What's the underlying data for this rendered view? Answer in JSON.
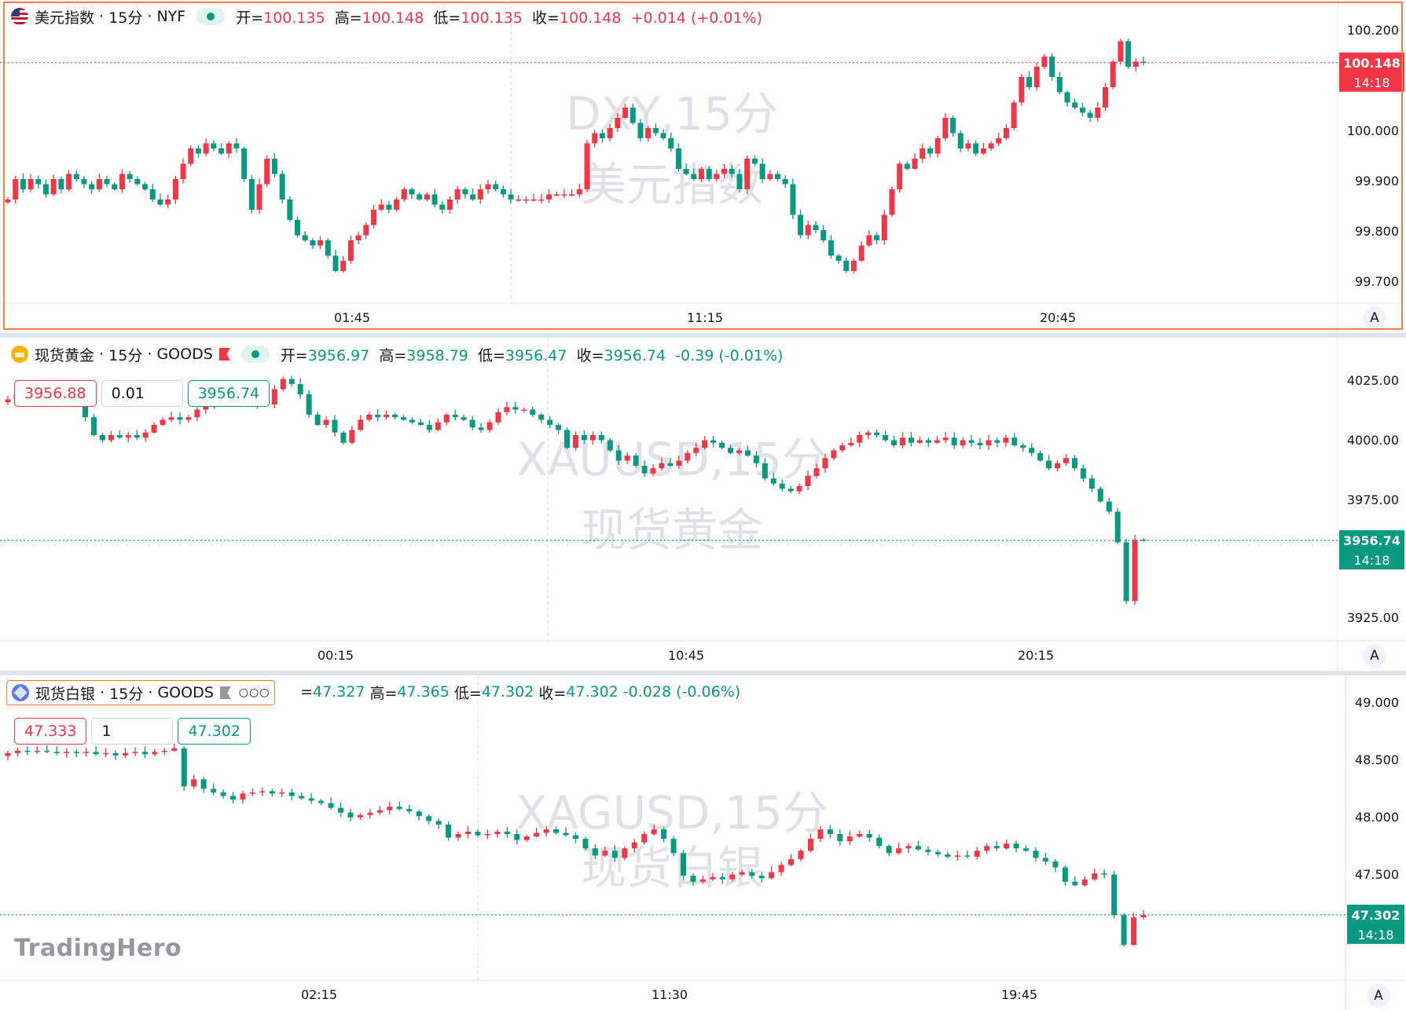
{
  "colors": {
    "up": "#f23645",
    "down": "#089981",
    "grid": "#e0e3eb",
    "axis_text": "#131722",
    "watermark": "#dfe1e6",
    "active_border": "#f57f45"
  },
  "time_label": "14:18",
  "logo": "TradingHero",
  "auto_label": "A",
  "panes": [
    {
      "symbol_name": "美元指数",
      "interval": "15分",
      "exchange": "NYF",
      "watermark_line1": "DXY,15分",
      "watermark_line2": "美元指数",
      "ohlc": {
        "o_label": "开=",
        "o": "100.135",
        "h_label": "高=",
        "h": "100.148",
        "l_label": "低=",
        "l": "100.135",
        "c_label": "收=",
        "c": "100.148",
        "chg": "+0.014",
        "chg_pct": "(+0.01%)"
      },
      "last_price": "100.148",
      "y_ticks": [
        "100.200",
        "100.000",
        "99.900",
        "99.800",
        "99.700"
      ],
      "x_ticks": [
        "01:45",
        "11:15",
        "20:45"
      ]
    },
    {
      "symbol_name": "现货黄金",
      "interval": "15分",
      "exchange": "GOODS",
      "watermark_line1": "XAUUSD,15分",
      "watermark_line2": "现货黄金",
      "ohlc": {
        "o_label": "开=",
        "o": "3956.97",
        "h_label": "高=",
        "h": "3958.79",
        "l_label": "低=",
        "l": "3956.47",
        "c_label": "收=",
        "c": "3956.74",
        "chg": "-0.39",
        "chg_pct": "(-0.01%)"
      },
      "sell": "3956.88",
      "qty": "0.01",
      "buy": "3956.74",
      "last_price": "3956.74",
      "y_ticks": [
        "4025.00",
        "4000.00",
        "3975.00",
        "3925.00"
      ],
      "x_ticks": [
        "00:15",
        "10:45",
        "20:15"
      ]
    },
    {
      "symbol_name": "现货白银",
      "interval": "15分",
      "exchange": "GOODS",
      "watermark_line1": "XAGUSD,15分",
      "watermark_line2": "现货白银",
      "ohlc": {
        "o_label": "=",
        "o": "47.327",
        "h_label": "高=",
        "h": "47.365",
        "l_label": "低=",
        "l": "47.302",
        "c_label": "收=",
        "c": "47.302",
        "chg": "-0.028",
        "chg_pct": "(-0.06%)"
      },
      "sell": "47.333",
      "qty": "1",
      "buy": "47.302",
      "last_price": "47.302",
      "y_ticks": [
        "49.000",
        "48.500",
        "48.000",
        "47.500",
        "47.000"
      ],
      "x_ticks": [
        "02:15",
        "11:30",
        "19:45"
      ]
    }
  ],
  "chart_data": [
    {
      "type": "candlestick",
      "title": "美元指数 · 15分 · NYF",
      "y_range": [
        99.68,
        100.24
      ],
      "last": 100.148,
      "y_ticks": [
        100.2,
        100.0,
        99.9,
        99.8,
        99.7
      ],
      "x_ticks": [
        "01:45",
        "11:15",
        "20:45"
      ],
      "close": [
        99.88,
        99.92,
        99.9,
        99.92,
        99.91,
        99.89,
        99.92,
        99.9,
        99.93,
        99.92,
        99.91,
        99.9,
        99.92,
        99.91,
        99.9,
        99.93,
        99.92,
        99.91,
        99.9,
        99.88,
        99.87,
        99.88,
        99.92,
        99.95,
        99.98,
        99.97,
        99.99,
        99.98,
        99.97,
        99.99,
        99.98,
        99.92,
        99.86,
        99.91,
        99.96,
        99.93,
        99.88,
        99.84,
        99.81,
        99.8,
        99.79,
        99.8,
        99.77,
        99.74,
        99.76,
        99.8,
        99.81,
        99.83,
        99.86,
        99.87,
        99.86,
        99.88,
        99.9,
        99.89,
        99.88,
        99.89,
        99.87,
        99.86,
        99.88,
        99.9,
        99.89,
        99.88,
        99.9,
        99.91,
        99.9,
        99.89,
        99.88,
        99.88,
        99.88,
        99.88,
        99.88,
        99.89,
        99.89,
        99.89,
        99.89,
        99.9,
        99.99,
        100.01,
        100.0,
        100.02,
        100.04,
        100.06,
        100.03,
        100.0,
        100.02,
        100.01,
        100.0,
        99.98,
        99.94,
        99.93,
        99.92,
        99.94,
        99.92,
        99.93,
        99.94,
        99.93,
        99.9,
        99.96,
        99.95,
        99.92,
        99.93,
        99.92,
        99.91,
        99.85,
        99.81,
        99.83,
        99.82,
        99.8,
        99.77,
        99.76,
        99.74,
        99.76,
        99.79,
        99.81,
        99.8,
        99.85,
        99.9,
        99.95,
        99.94,
        99.96,
        99.98,
        99.97,
        100.0,
        100.04,
        100.01,
        99.98,
        99.99,
        99.97,
        99.98,
        99.99,
        100.0,
        100.02,
        100.07,
        100.12,
        100.1,
        100.14,
        100.16,
        100.12,
        100.09,
        100.07,
        100.06,
        100.05,
        100.04,
        100.06,
        100.1,
        100.15,
        100.19,
        100.14,
        100.15,
        100.148
      ]
    },
    {
      "type": "candlestick",
      "title": "现货黄金 · 15分 · GOODS",
      "y_range": [
        3918,
        4030
      ],
      "last": 3956.74,
      "y_ticks": [
        4025,
        4000,
        3975,
        3925
      ],
      "x_ticks": [
        "00:15",
        "10:45",
        "20:15"
      ],
      "close": [
        4012,
        4014,
        4013,
        4012,
        4013,
        4012,
        4014,
        4012,
        4011,
        4005,
        3998,
        3996,
        3998,
        3997,
        3998,
        3997,
        3999,
        4002,
        4004,
        4005,
        4004,
        4005,
        4008,
        4010,
        4011,
        4012,
        4011,
        4012,
        4013,
        4010,
        4010,
        4016,
        4020,
        4018,
        4014,
        4006,
        4002,
        4004,
        3999,
        3995,
        4000,
        4004,
        4006,
        4005,
        4006,
        4005,
        4004,
        4003,
        4002,
        4000,
        4003,
        4006,
        4005,
        4004,
        4001,
        4000,
        4003,
        4007,
        4009,
        4008,
        4008,
        4006,
        4004,
        4002,
        4000,
        3993,
        3998,
        3996,
        3998,
        3996,
        3992,
        3988,
        3990,
        3986,
        3983,
        3985,
        3987,
        3986,
        3988,
        3991,
        3993,
        3996,
        3995,
        3993,
        3991,
        3992,
        3990,
        3987,
        3981,
        3979,
        3977,
        3976,
        3978,
        3982,
        3985,
        3989,
        3992,
        3994,
        3995,
        3998,
        3999,
        3998,
        3996,
        3994,
        3997,
        3995,
        3996,
        3995,
        3996,
        3997,
        3994,
        3996,
        3995,
        3994,
        3996,
        3995,
        3997,
        3994,
        3993,
        3991,
        3988,
        3985,
        3987,
        3989,
        3985,
        3981,
        3977,
        3972,
        3968,
        3956,
        3933,
        3957,
        3956.74
      ]
    },
    {
      "type": "candlestick",
      "title": "现货白银 · 15分 · GOODS",
      "y_range": [
        46.78,
        49.18
      ],
      "last": 47.302,
      "y_ticks": [
        49.0,
        48.5,
        48.0,
        47.5,
        47.0
      ],
      "x_ticks": [
        "02:15",
        "11:30",
        "19:45"
      ],
      "close": [
        48.66,
        48.68,
        48.67,
        48.68,
        48.67,
        48.66,
        48.67,
        48.66,
        48.67,
        48.65,
        48.66,
        48.64,
        48.66,
        48.67,
        48.65,
        48.67,
        48.68,
        48.7,
        48.38,
        48.44,
        48.36,
        48.33,
        48.3,
        48.27,
        48.32,
        48.33,
        48.34,
        48.32,
        48.33,
        48.3,
        48.28,
        48.26,
        48.24,
        48.2,
        48.16,
        48.12,
        48.14,
        48.16,
        48.18,
        48.21,
        48.19,
        48.17,
        48.13,
        48.09,
        48.06,
        47.95,
        47.98,
        48.0,
        47.97,
        47.98,
        48.0,
        47.98,
        47.93,
        47.96,
        47.99,
        48.02,
        47.99,
        47.97,
        47.94,
        47.86,
        47.8,
        47.84,
        47.78,
        47.86,
        47.91,
        47.98,
        48.02,
        47.94,
        47.82,
        47.63,
        47.58,
        47.6,
        47.62,
        47.6,
        47.64,
        47.66,
        47.63,
        47.61,
        47.66,
        47.72,
        47.77,
        47.84,
        47.94,
        48.02,
        47.98,
        47.92,
        47.96,
        47.98,
        47.95,
        47.88,
        47.82,
        47.86,
        47.88,
        47.85,
        47.83,
        47.81,
        47.79,
        47.8,
        47.79,
        47.84,
        47.88,
        47.86,
        47.9,
        47.86,
        47.84,
        47.78,
        47.75,
        47.7,
        47.58,
        47.55,
        47.6,
        47.65,
        47.64,
        47.3,
        47.05,
        47.28,
        47.302
      ]
    }
  ]
}
